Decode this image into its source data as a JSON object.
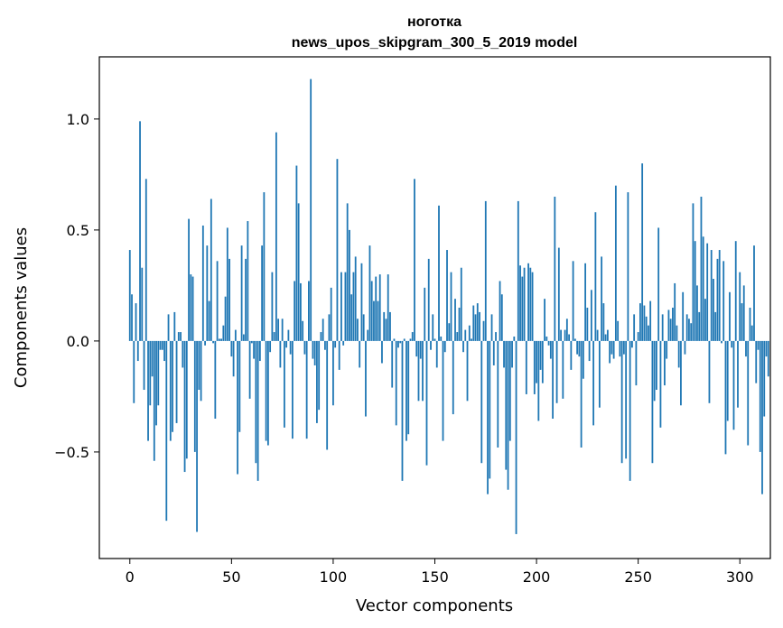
{
  "chart_data": {
    "type": "bar",
    "title": "ноготка",
    "subtitle": "news_upos_skipgram_300_5_2019 model",
    "xlabel": "Vector components",
    "ylabel": "Components values",
    "xlim": [
      -15,
      315
    ],
    "ylim": [
      -0.98,
      1.28
    ],
    "xticks": [
      0,
      50,
      100,
      150,
      200,
      250,
      300
    ],
    "xtick_labels": [
      "0",
      "50",
      "100",
      "150",
      "200",
      "250",
      "300"
    ],
    "yticks": [
      -0.5,
      0.0,
      0.5,
      1.0
    ],
    "ytick_labels": [
      "−0.5",
      "0.0",
      "0.5",
      "1.0"
    ],
    "bar_color": "#1f77b4",
    "values": [
      0.41,
      0.21,
      -0.28,
      0.17,
      -0.09,
      0.99,
      0.33,
      -0.22,
      0.73,
      -0.45,
      -0.29,
      -0.16,
      -0.54,
      -0.38,
      -0.29,
      -0.04,
      -0.04,
      -0.09,
      -0.81,
      0.12,
      -0.45,
      -0.41,
      0.13,
      -0.37,
      0.04,
      0.04,
      -0.12,
      -0.59,
      -0.53,
      0.55,
      0.3,
      0.29,
      -0.5,
      -0.86,
      -0.22,
      -0.27,
      0.52,
      -0.02,
      0.43,
      0.18,
      0.64,
      -0.01,
      -0.35,
      0.36,
      0.01,
      0.01,
      0.07,
      0.2,
      0.51,
      0.37,
      -0.07,
      -0.16,
      0.05,
      -0.6,
      -0.41,
      0.43,
      0.03,
      0.37,
      0.54,
      -0.26,
      -0.01,
      -0.08,
      -0.55,
      -0.63,
      -0.09,
      0.43,
      0.67,
      -0.45,
      -0.47,
      -0.05,
      0.31,
      0.04,
      0.94,
      0.1,
      -0.12,
      0.1,
      -0.39,
      -0.03,
      0.05,
      -0.06,
      -0.44,
      0.27,
      0.79,
      0.62,
      0.26,
      0.09,
      -0.06,
      -0.44,
      0.27,
      1.18,
      -0.08,
      -0.11,
      -0.37,
      -0.31,
      0.04,
      0.1,
      -0.04,
      -0.49,
      0.12,
      0.24,
      -0.29,
      -0.03,
      0.82,
      -0.13,
      0.31,
      -0.02,
      0.31,
      0.62,
      0.5,
      0.21,
      0.31,
      0.38,
      0.1,
      -0.12,
      0.35,
      0.12,
      -0.34,
      0.05,
      0.43,
      0.27,
      0.18,
      0.29,
      0.18,
      0.3,
      -0.1,
      0.13,
      0.1,
      0.3,
      0.13,
      -0.21,
      0.01,
      -0.38,
      -0.03,
      -0.01,
      -0.63,
      0.01,
      -0.45,
      -0.42,
      0.01,
      0.04,
      0.73,
      -0.07,
      -0.27,
      -0.08,
      -0.27,
      0.24,
      -0.56,
      0.37,
      -0.04,
      0.12,
      0.01,
      -0.12,
      0.61,
      0.02,
      -0.45,
      -0.05,
      0.41,
      0.08,
      0.31,
      -0.33,
      0.19,
      0.04,
      0.15,
      0.33,
      -0.05,
      0.05,
      -0.27,
      0.07,
      0.01,
      0.16,
      0.12,
      0.17,
      0.13,
      -0.55,
      0.09,
      0.63,
      -0.69,
      -0.62,
      0.12,
      -0.11,
      0.04,
      -0.48,
      0.27,
      0.21,
      -0.12,
      -0.58,
      -0.67,
      -0.45,
      -0.12,
      0.02,
      -0.87,
      0.63,
      0.34,
      0.29,
      0.33,
      -0.24,
      0.35,
      0.33,
      0.31,
      -0.24,
      -0.19,
      -0.36,
      -0.13,
      -0.19,
      0.19,
      0.02,
      -0.02,
      -0.08,
      -0.35,
      0.65,
      -0.28,
      0.42,
      0.05,
      -0.26,
      0.05,
      0.1,
      0.03,
      -0.13,
      0.36,
      0.01,
      -0.06,
      -0.07,
      -0.48,
      -0.17,
      0.35,
      0.15,
      -0.09,
      0.23,
      -0.38,
      0.58,
      0.05,
      -0.3,
      0.38,
      0.17,
      0.03,
      0.05,
      -0.1,
      -0.06,
      -0.08,
      0.7,
      0.09,
      -0.07,
      -0.55,
      -0.06,
      -0.53,
      0.67,
      -0.63,
      -0.03,
      0.12,
      -0.2,
      0.04,
      0.17,
      0.8,
      0.16,
      0.11,
      0.07,
      0.18,
      -0.55,
      -0.27,
      -0.22,
      0.51,
      -0.39,
      0.12,
      -0.2,
      -0.08,
      0.14,
      0.1,
      0.15,
      0.26,
      0.07,
      -0.12,
      -0.29,
      0.22,
      -0.06,
      0.12,
      0.1,
      0.08,
      0.62,
      0.45,
      0.25,
      0.13,
      0.65,
      0.47,
      0.19,
      0.44,
      -0.28,
      0.41,
      0.28,
      0.13,
      0.37,
      0.41,
      -0.01,
      0.36,
      -0.51,
      -0.36,
      0.22,
      -0.03,
      -0.4,
      0.45,
      -0.3,
      0.31,
      0.17,
      0.25,
      -0.07,
      -0.47,
      0.15,
      0.07,
      0.43,
      -0.19,
      -0.04,
      -0.5,
      -0.69,
      -0.34,
      -0.07,
      -0.16
    ]
  }
}
